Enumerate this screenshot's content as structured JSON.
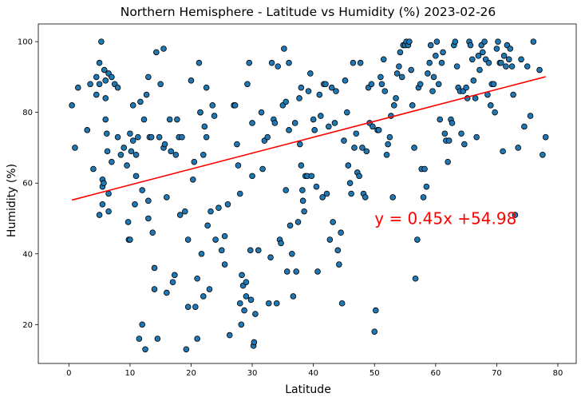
{
  "chart_data": {
    "type": "scatter",
    "title": "Northern Hemisphere - Latitude vs Humidity (%) 2023-02-26",
    "xlabel": "Latitude",
    "ylabel": "Humidity (%)",
    "xlim": [
      -5,
      83
    ],
    "ylim": [
      9,
      105
    ],
    "xticks": [
      0,
      10,
      20,
      30,
      40,
      50,
      60,
      70,
      80
    ],
    "yticks": [
      20,
      40,
      60,
      80,
      100
    ],
    "grid": false,
    "marker_color": "#1f77b4",
    "marker_edge": "#000000",
    "regression": {
      "slope": 0.45,
      "intercept": 54.98,
      "x_range": [
        0.5,
        78
      ],
      "color": "#ff0000",
      "equation": "y = 0.45x +54.98",
      "equation_position": [
        50,
        50
      ]
    },
    "points": [
      [
        0.5,
        82
      ],
      [
        1,
        70
      ],
      [
        1.5,
        87
      ],
      [
        3,
        75
      ],
      [
        3.5,
        88
      ],
      [
        4,
        64
      ],
      [
        4.5,
        90
      ],
      [
        4.5,
        85
      ],
      [
        5,
        94
      ],
      [
        5,
        88
      ],
      [
        5,
        51
      ],
      [
        5.3,
        100
      ],
      [
        5.5,
        61
      ],
      [
        5.5,
        59
      ],
      [
        5.5,
        54
      ],
      [
        5.7,
        60
      ],
      [
        5.8,
        92
      ],
      [
        6,
        89
      ],
      [
        6,
        84
      ],
      [
        6,
        78
      ],
      [
        6.2,
        74
      ],
      [
        6.3,
        69
      ],
      [
        6.5,
        57
      ],
      [
        6.5,
        52
      ],
      [
        6.5,
        91
      ],
      [
        7,
        66
      ],
      [
        7,
        90
      ],
      [
        7.5,
        88
      ],
      [
        8,
        73
      ],
      [
        8,
        87
      ],
      [
        8.5,
        68
      ],
      [
        9,
        70
      ],
      [
        9.5,
        65
      ],
      [
        9.7,
        49
      ],
      [
        9.8,
        44
      ],
      [
        10,
        74
      ],
      [
        10,
        44
      ],
      [
        10.2,
        69
      ],
      [
        10.5,
        82
      ],
      [
        10.5,
        72
      ],
      [
        10.8,
        54
      ],
      [
        11,
        68
      ],
      [
        11,
        62
      ],
      [
        11.3,
        73
      ],
      [
        11.5,
        16
      ],
      [
        11.7,
        83
      ],
      [
        12,
        58
      ],
      [
        12,
        20
      ],
      [
        12.3,
        78
      ],
      [
        12.5,
        13
      ],
      [
        12.7,
        85
      ],
      [
        13,
        90
      ],
      [
        13,
        55
      ],
      [
        13,
        50
      ],
      [
        13.2,
        73
      ],
      [
        13.5,
        73
      ],
      [
        13.7,
        46
      ],
      [
        14,
        36
      ],
      [
        14,
        30
      ],
      [
        14.3,
        97
      ],
      [
        14.5,
        16
      ],
      [
        14.8,
        73
      ],
      [
        15,
        88
      ],
      [
        15.5,
        98
      ],
      [
        15.5,
        70
      ],
      [
        15.7,
        71
      ],
      [
        16,
        56
      ],
      [
        16,
        29
      ],
      [
        16.5,
        78
      ],
      [
        16.7,
        69
      ],
      [
        17,
        32
      ],
      [
        17.3,
        34
      ],
      [
        17.5,
        68
      ],
      [
        17.7,
        78
      ],
      [
        18,
        73
      ],
      [
        18.2,
        51
      ],
      [
        18.5,
        73
      ],
      [
        19,
        52
      ],
      [
        19.2,
        13
      ],
      [
        19.5,
        44
      ],
      [
        19.5,
        25
      ],
      [
        20,
        89
      ],
      [
        20.3,
        61
      ],
      [
        20.5,
        66
      ],
      [
        20.7,
        25
      ],
      [
        21,
        33
      ],
      [
        21,
        16
      ],
      [
        21.3,
        94
      ],
      [
        21.5,
        80
      ],
      [
        21.5,
        80
      ],
      [
        21.7,
        40
      ],
      [
        22,
        28
      ],
      [
        22,
        68
      ],
      [
        22.2,
        76
      ],
      [
        22.5,
        73
      ],
      [
        22.5,
        87
      ],
      [
        22.7,
        48
      ],
      [
        23,
        30
      ],
      [
        23.2,
        52
      ],
      [
        23.5,
        82
      ],
      [
        23.8,
        79
      ],
      [
        24,
        44
      ],
      [
        24.5,
        53
      ],
      [
        25,
        41
      ],
      [
        25.5,
        45
      ],
      [
        25.5,
        37
      ],
      [
        26,
        54
      ],
      [
        26.3,
        17
      ],
      [
        27,
        82
      ],
      [
        27.2,
        82
      ],
      [
        27.5,
        71
      ],
      [
        27.7,
        65
      ],
      [
        28,
        57
      ],
      [
        28,
        26
      ],
      [
        28.2,
        20
      ],
      [
        28.3,
        34
      ],
      [
        28.5,
        31
      ],
      [
        28.7,
        24
      ],
      [
        29,
        32
      ],
      [
        29,
        28
      ],
      [
        29.2,
        88
      ],
      [
        29.5,
        94
      ],
      [
        29.7,
        41
      ],
      [
        29.8,
        27
      ],
      [
        30,
        77
      ],
      [
        30,
        62
      ],
      [
        30.2,
        14
      ],
      [
        30.3,
        15
      ],
      [
        30.5,
        23
      ],
      [
        31,
        41
      ],
      [
        31.5,
        80
      ],
      [
        31.7,
        64
      ],
      [
        32,
        72
      ],
      [
        32.5,
        73
      ],
      [
        32.7,
        26
      ],
      [
        33,
        39
      ],
      [
        33.2,
        94
      ],
      [
        33.5,
        78
      ],
      [
        33.7,
        77
      ],
      [
        34,
        26
      ],
      [
        34.2,
        93
      ],
      [
        34.5,
        44
      ],
      [
        34.7,
        43
      ],
      [
        35,
        82
      ],
      [
        35.2,
        98
      ],
      [
        35.5,
        83
      ],
      [
        35.5,
        58
      ],
      [
        35.7,
        35
      ],
      [
        36,
        94
      ],
      [
        36,
        75
      ],
      [
        36.2,
        48
      ],
      [
        36.5,
        40
      ],
      [
        36.7,
        28
      ],
      [
        37,
        77
      ],
      [
        37.2,
        35
      ],
      [
        37.5,
        49
      ],
      [
        37.7,
        84
      ],
      [
        37.8,
        71
      ],
      [
        38,
        87
      ],
      [
        38,
        65
      ],
      [
        38.2,
        58
      ],
      [
        38.3,
        55
      ],
      [
        38.5,
        52
      ],
      [
        38.7,
        62
      ],
      [
        39,
        62
      ],
      [
        39.2,
        86
      ],
      [
        39.5,
        91
      ],
      [
        39.7,
        62
      ],
      [
        40,
        78
      ],
      [
        40.2,
        75
      ],
      [
        40.5,
        59
      ],
      [
        40.7,
        35
      ],
      [
        41,
        85
      ],
      [
        41.2,
        79
      ],
      [
        41.5,
        56
      ],
      [
        41.7,
        88
      ],
      [
        42,
        88
      ],
      [
        42.2,
        57
      ],
      [
        42.5,
        76
      ],
      [
        42.7,
        44
      ],
      [
        43,
        87
      ],
      [
        43.2,
        49
      ],
      [
        43.5,
        77
      ],
      [
        43.7,
        86
      ],
      [
        44,
        41
      ],
      [
        44.2,
        37
      ],
      [
        44.5,
        46
      ],
      [
        44.7,
        26
      ],
      [
        45,
        72
      ],
      [
        45.2,
        89
      ],
      [
        45.5,
        80
      ],
      [
        45.7,
        65
      ],
      [
        46,
        60
      ],
      [
        46.2,
        57
      ],
      [
        46.5,
        94
      ],
      [
        46.7,
        70
      ],
      [
        47,
        74
      ],
      [
        47.2,
        63
      ],
      [
        47.5,
        62
      ],
      [
        47.7,
        94
      ],
      [
        48,
        70
      ],
      [
        48.2,
        57
      ],
      [
        48.5,
        56
      ],
      [
        48.7,
        69
      ],
      [
        49,
        87
      ],
      [
        49.2,
        77
      ],
      [
        49.5,
        88
      ],
      [
        49.7,
        76
      ],
      [
        50,
        18
      ],
      [
        50.2,
        24
      ],
      [
        50.5,
        75
      ],
      [
        50.7,
        75
      ],
      [
        51,
        90
      ],
      [
        51.2,
        88
      ],
      [
        51.5,
        95
      ],
      [
        51.7,
        86
      ],
      [
        52,
        68
      ],
      [
        52.2,
        71
      ],
      [
        52.5,
        73
      ],
      [
        52.7,
        79
      ],
      [
        53,
        56
      ],
      [
        53.2,
        82
      ],
      [
        53.5,
        84
      ],
      [
        53.7,
        91
      ],
      [
        54,
        93
      ],
      [
        54.2,
        97
      ],
      [
        54.5,
        90
      ],
      [
        54.7,
        99
      ],
      [
        55,
        99
      ],
      [
        55.2,
        100
      ],
      [
        55.5,
        99
      ],
      [
        55.7,
        100
      ],
      [
        56,
        92
      ],
      [
        56.2,
        82
      ],
      [
        56.5,
        70
      ],
      [
        56.7,
        33
      ],
      [
        57,
        44
      ],
      [
        57.2,
        87
      ],
      [
        57.5,
        88
      ],
      [
        57.7,
        64
      ],
      [
        58,
        56
      ],
      [
        58.2,
        64
      ],
      [
        58.5,
        59
      ],
      [
        58.7,
        91
      ],
      [
        59,
        94
      ],
      [
        59.2,
        99
      ],
      [
        59.5,
        86
      ],
      [
        59.7,
        90
      ],
      [
        60,
        96
      ],
      [
        60.2,
        100
      ],
      [
        60.5,
        88
      ],
      [
        60.7,
        78
      ],
      [
        61,
        94
      ],
      [
        61.2,
        97
      ],
      [
        61.5,
        74
      ],
      [
        61.7,
        72
      ],
      [
        62,
        66
      ],
      [
        62.2,
        72
      ],
      [
        62.5,
        78
      ],
      [
        62.7,
        77
      ],
      [
        63,
        99
      ],
      [
        63.2,
        100
      ],
      [
        63.5,
        93
      ],
      [
        63.7,
        87
      ],
      [
        64,
        86
      ],
      [
        64.2,
        74
      ],
      [
        64.5,
        86
      ],
      [
        64.7,
        71
      ],
      [
        65,
        87
      ],
      [
        65.2,
        84
      ],
      [
        65.5,
        100
      ],
      [
        65.7,
        99
      ],
      [
        66,
        95
      ],
      [
        66.2,
        89
      ],
      [
        66.5,
        84
      ],
      [
        66.7,
        73
      ],
      [
        67,
        96
      ],
      [
        67.2,
        92
      ],
      [
        67.5,
        99
      ],
      [
        67.7,
        97
      ],
      [
        68,
        100
      ],
      [
        68.2,
        95
      ],
      [
        68.5,
        85
      ],
      [
        68.7,
        94
      ],
      [
        69,
        82
      ],
      [
        69.2,
        88
      ],
      [
        69.5,
        88
      ],
      [
        69.7,
        80
      ],
      [
        70,
        98
      ],
      [
        70.2,
        100
      ],
      [
        70.5,
        94
      ],
      [
        70.7,
        94
      ],
      [
        71,
        69
      ],
      [
        71.2,
        96
      ],
      [
        71.5,
        93
      ],
      [
        71.7,
        99
      ],
      [
        72,
        95
      ],
      [
        72.2,
        98
      ],
      [
        72.5,
        93
      ],
      [
        72.7,
        85
      ],
      [
        73,
        51
      ],
      [
        73.5,
        70
      ],
      [
        74,
        95
      ],
      [
        74.5,
        76
      ],
      [
        75,
        93
      ],
      [
        75.5,
        79
      ],
      [
        76,
        100
      ],
      [
        77,
        92
      ],
      [
        77.5,
        68
      ],
      [
        78,
        73
      ]
    ]
  }
}
